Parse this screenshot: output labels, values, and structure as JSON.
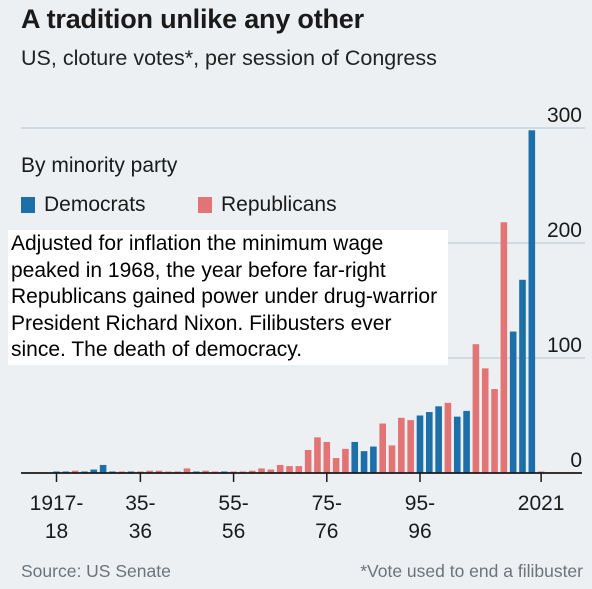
{
  "title": "A tradition unlike any other",
  "subtitle": "US, cloture votes*, per session of Congress",
  "legend_title": "By minority party",
  "overlay_note": "Adjusted for inflation the minimum wage peaked in 1968, the year before far-right Republicans gained power under drug-warrior President Richard Nixon. Filibusters ever since. The death of democracy.",
  "source": "Source: US Senate",
  "footnote": "*Vote used to end a filibuster",
  "colors": {
    "democrats": "#1c6fa8",
    "republicans": "#e27476",
    "grid": "#b7c3cb",
    "axis": "#1a1a1a",
    "background": "#ecf0f3"
  },
  "chart_data": {
    "type": "bar",
    "title": "A tradition unlike any other",
    "subtitle": "US, cloture votes*, per session of Congress",
    "ylim": [
      0,
      300
    ],
    "y_ticks": [
      "0",
      "100",
      "200",
      "300"
    ],
    "x_tick_labels": [
      {
        "session": 65,
        "lines": [
          "1917-",
          "18"
        ]
      },
      {
        "session": 74,
        "lines": [
          "35-",
          "36"
        ]
      },
      {
        "session": 84,
        "lines": [
          "55-",
          "56"
        ]
      },
      {
        "session": 94,
        "lines": [
          "75-",
          "76"
        ]
      },
      {
        "session": 104,
        "lines": [
          "95-",
          "96"
        ]
      },
      {
        "session": 117,
        "lines": [
          "2021"
        ]
      }
    ],
    "grid": true,
    "legend": {
      "title": "By minority party",
      "placement": "top-left"
    },
    "series": [
      {
        "name": "Democrats",
        "color": "#1c6fa8"
      },
      {
        "name": "Republicans",
        "color": "#e27476"
      }
    ],
    "sessions": [
      {
        "session": 65,
        "value": 1,
        "party": "Democrats"
      },
      {
        "session": 66,
        "value": 1,
        "party": "Democrats"
      },
      {
        "session": 67,
        "value": 2,
        "party": "Republicans"
      },
      {
        "session": 68,
        "value": 1,
        "party": "Democrats"
      },
      {
        "session": 69,
        "value": 3,
        "party": "Democrats"
      },
      {
        "session": 70,
        "value": 7,
        "party": "Democrats"
      },
      {
        "session": 71,
        "value": 1,
        "party": "Democrats"
      },
      {
        "session": 72,
        "value": 1,
        "party": "Republicans"
      },
      {
        "session": 73,
        "value": 1,
        "party": "Democrats"
      },
      {
        "session": 74,
        "value": 1,
        "party": "Republicans"
      },
      {
        "session": 75,
        "value": 2,
        "party": "Republicans"
      },
      {
        "session": 76,
        "value": 2,
        "party": "Republicans"
      },
      {
        "session": 77,
        "value": 1,
        "party": "Republicans"
      },
      {
        "session": 78,
        "value": 1,
        "party": "Republicans"
      },
      {
        "session": 79,
        "value": 4,
        "party": "Republicans"
      },
      {
        "session": 80,
        "value": 1,
        "party": "Democrats"
      },
      {
        "session": 81,
        "value": 2,
        "party": "Republicans"
      },
      {
        "session": 82,
        "value": 1,
        "party": "Republicans"
      },
      {
        "session": 83,
        "value": 1,
        "party": "Democrats"
      },
      {
        "session": 84,
        "value": 1,
        "party": "Republicans"
      },
      {
        "session": 85,
        "value": 1,
        "party": "Republicans"
      },
      {
        "session": 86,
        "value": 2,
        "party": "Republicans"
      },
      {
        "session": 87,
        "value": 4,
        "party": "Republicans"
      },
      {
        "session": 88,
        "value": 3,
        "party": "Republicans"
      },
      {
        "session": 89,
        "value": 7,
        "party": "Republicans"
      },
      {
        "session": 90,
        "value": 6,
        "party": "Republicans"
      },
      {
        "session": 91,
        "value": 6,
        "party": "Republicans"
      },
      {
        "session": 92,
        "value": 20,
        "party": "Republicans"
      },
      {
        "session": 93,
        "value": 31,
        "party": "Republicans"
      },
      {
        "session": 94,
        "value": 27,
        "party": "Republicans"
      },
      {
        "session": 95,
        "value": 13,
        "party": "Republicans"
      },
      {
        "session": 96,
        "value": 21,
        "party": "Republicans"
      },
      {
        "session": 97,
        "value": 27,
        "party": "Democrats"
      },
      {
        "session": 98,
        "value": 19,
        "party": "Democrats"
      },
      {
        "session": 99,
        "value": 23,
        "party": "Democrats"
      },
      {
        "session": 100,
        "value": 43,
        "party": "Republicans"
      },
      {
        "session": 101,
        "value": 24,
        "party": "Republicans"
      },
      {
        "session": 102,
        "value": 48,
        "party": "Republicans"
      },
      {
        "session": 103,
        "value": 46,
        "party": "Republicans"
      },
      {
        "session": 104,
        "value": 50,
        "party": "Democrats"
      },
      {
        "session": 105,
        "value": 53,
        "party": "Democrats"
      },
      {
        "session": 106,
        "value": 58,
        "party": "Democrats"
      },
      {
        "session": 107,
        "value": 61,
        "party": "Republicans"
      },
      {
        "session": 108,
        "value": 49,
        "party": "Democrats"
      },
      {
        "session": 109,
        "value": 54,
        "party": "Democrats"
      },
      {
        "session": 110,
        "value": 112,
        "party": "Republicans"
      },
      {
        "session": 111,
        "value": 91,
        "party": "Republicans"
      },
      {
        "session": 112,
        "value": 73,
        "party": "Republicans"
      },
      {
        "session": 113,
        "value": 218,
        "party": "Republicans"
      },
      {
        "session": 114,
        "value": 123,
        "party": "Democrats"
      },
      {
        "session": 115,
        "value": 168,
        "party": "Democrats"
      },
      {
        "session": 116,
        "value": 298,
        "party": "Democrats"
      },
      {
        "session": 117,
        "value": 1,
        "party": "Republicans"
      }
    ]
  }
}
